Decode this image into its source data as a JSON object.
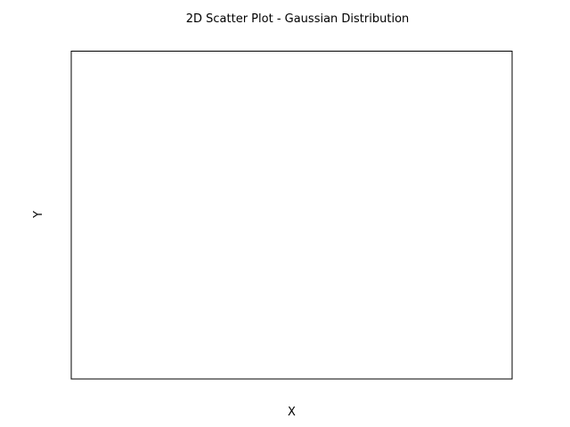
{
  "chart_data": {
    "type": "scatter",
    "title": "2D Scatter Plot - Gaussian Distribution",
    "xlabel": "X",
    "ylabel": "Y",
    "x": [],
    "y": [],
    "grid": false,
    "ticks_visible": false,
    "colors": {
      "background": "#ffffff",
      "frame": "#000000",
      "text": "#000000"
    }
  }
}
